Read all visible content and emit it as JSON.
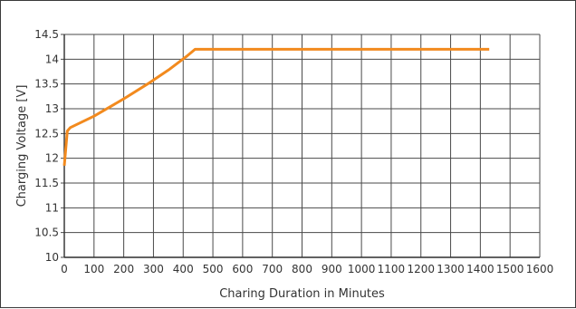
{
  "chart_data": {
    "type": "line",
    "title": "",
    "xlabel": "Charing Duration in Minutes",
    "ylabel": "Charging Voltage [V]",
    "xlim": [
      0,
      1600
    ],
    "ylim": [
      10,
      14.5
    ],
    "x_ticks": [
      0,
      100,
      200,
      300,
      400,
      500,
      600,
      700,
      800,
      900,
      1000,
      1100,
      1200,
      1300,
      1400,
      1500,
      1600
    ],
    "y_ticks": [
      10,
      10.5,
      11,
      11.5,
      12,
      12.5,
      13,
      13.5,
      14,
      14.5
    ],
    "y_tick_labels": [
      "10",
      "10.5",
      "11",
      "11.5",
      "12",
      "12.5",
      "13",
      "13.5",
      "14",
      "14.5"
    ],
    "grid": true,
    "legend": "none",
    "series": [
      {
        "color": "#f28a1e",
        "x": [
          0,
          10,
          20,
          100,
          200,
          280,
          350,
          410,
          440,
          1200,
          1430
        ],
        "y": [
          11.85,
          12.55,
          12.62,
          12.85,
          13.2,
          13.5,
          13.78,
          14.05,
          14.2,
          14.2,
          14.2
        ]
      }
    ]
  }
}
